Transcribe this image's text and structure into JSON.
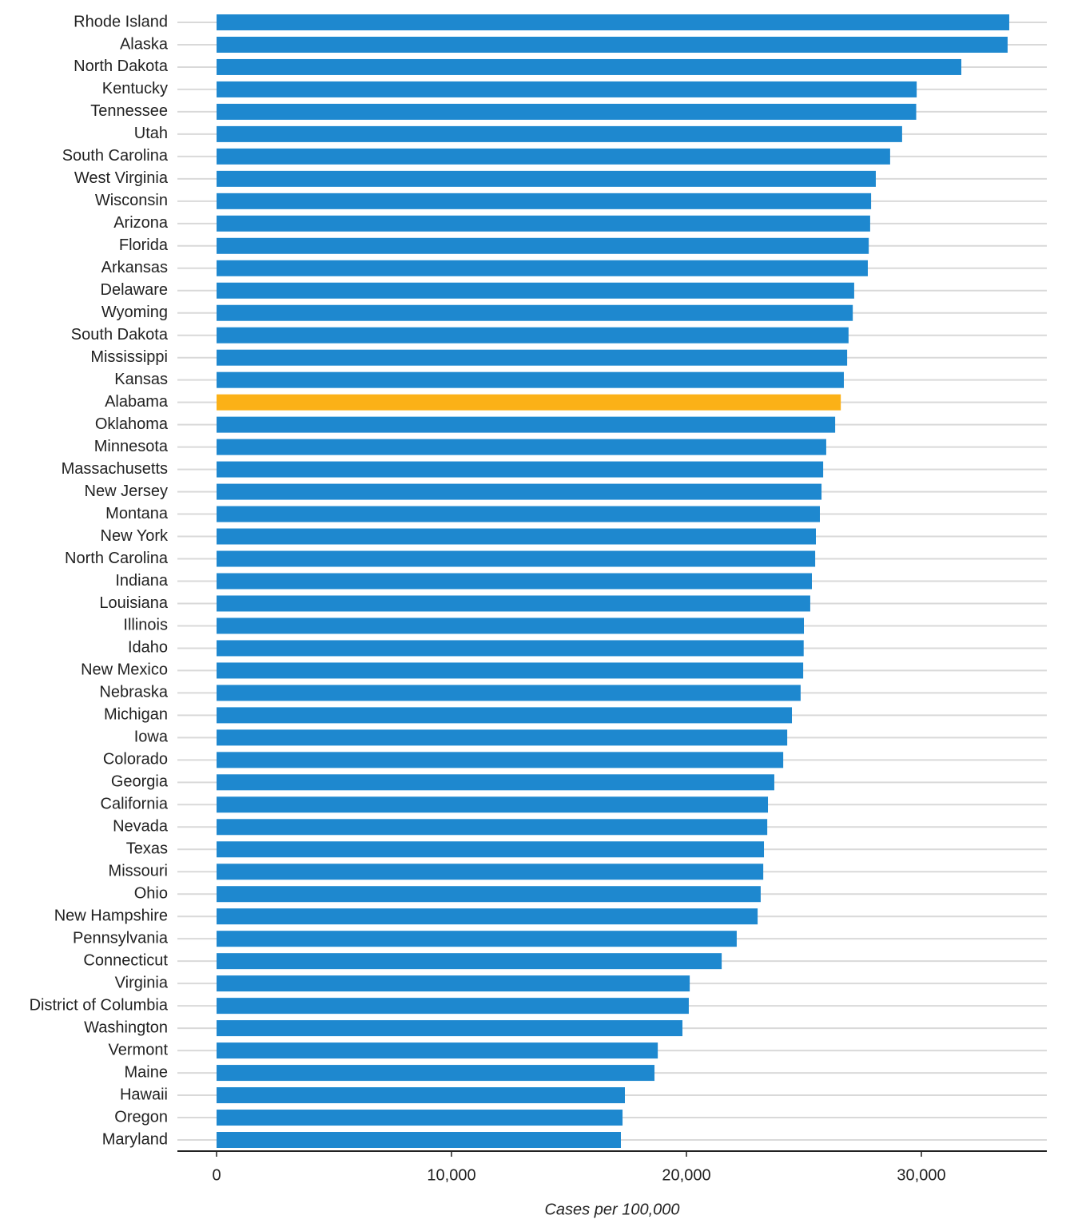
{
  "chart_data": {
    "type": "barh",
    "x_label": "Cases per 100,000",
    "categories": [
      "Rhode Island",
      "Alaska",
      "North Dakota",
      "Kentucky",
      "Tennessee",
      "Utah",
      "South Carolina",
      "West Virginia",
      "Wisconsin",
      "Arizona",
      "Florida",
      "Arkansas",
      "Delaware",
      "Wyoming",
      "South Dakota",
      "Mississippi",
      "Kansas",
      "Alabama",
      "Oklahoma",
      "Minnesota",
      "Massachusetts",
      "New Jersey",
      "Montana",
      "New York",
      "North Carolina",
      "Indiana",
      "Louisiana",
      "Illinois",
      "Idaho",
      "New Mexico",
      "Nebraska",
      "Michigan",
      "Iowa",
      "Colorado",
      "Georgia",
      "California",
      "Nevada",
      "Texas",
      "Missouri",
      "Ohio",
      "New Hampshire",
      "Pennsylvania",
      "Connecticut",
      "Virginia",
      "District of Columbia",
      "Washington",
      "Vermont",
      "Maine",
      "Hawaii",
      "Oregon",
      "Maryland"
    ],
    "values": [
      33740,
      33670,
      31700,
      29800,
      29780,
      29180,
      28670,
      28060,
      27860,
      27820,
      27760,
      27720,
      27140,
      27080,
      26900,
      26840,
      26700,
      26570,
      26330,
      25950,
      25820,
      25750,
      25680,
      25510,
      25480,
      25340,
      25270,
      25000,
      24990,
      24970,
      24860,
      24490,
      24290,
      24120,
      23740,
      23470,
      23440,
      23300,
      23270,
      23160,
      23030,
      22140,
      21500,
      20140,
      20100,
      19830,
      18780,
      18640,
      17380,
      17280,
      17210
    ],
    "colors": [
      "#1e88cf",
      "#1e88cf",
      "#1e88cf",
      "#1e88cf",
      "#1e88cf",
      "#1e88cf",
      "#1e88cf",
      "#1e88cf",
      "#1e88cf",
      "#1e88cf",
      "#1e88cf",
      "#1e88cf",
      "#1e88cf",
      "#1e88cf",
      "#1e88cf",
      "#1e88cf",
      "#1e88cf",
      "#fbb117",
      "#1e88cf",
      "#1e88cf",
      "#1e88cf",
      "#1e88cf",
      "#1e88cf",
      "#1e88cf",
      "#1e88cf",
      "#1e88cf",
      "#1e88cf",
      "#1e88cf",
      "#1e88cf",
      "#1e88cf",
      "#1e88cf",
      "#1e88cf",
      "#1e88cf",
      "#1e88cf",
      "#1e88cf",
      "#1e88cf",
      "#1e88cf",
      "#1e88cf",
      "#1e88cf",
      "#1e88cf",
      "#1e88cf",
      "#1e88cf",
      "#1e88cf",
      "#1e88cf",
      "#1e88cf",
      "#1e88cf",
      "#1e88cf",
      "#1e88cf",
      "#1e88cf",
      "#1e88cf",
      "#1e88cf"
    ],
    "xlim": [
      -1667,
      35340
    ],
    "xticks": [
      0,
      {
        "value": 10000,
        "label": "10,000"
      },
      {
        "value": 20000,
        "label": "20,000"
      },
      {
        "value": 30000,
        "label": "30,000"
      }
    ],
    "grid": true
  }
}
